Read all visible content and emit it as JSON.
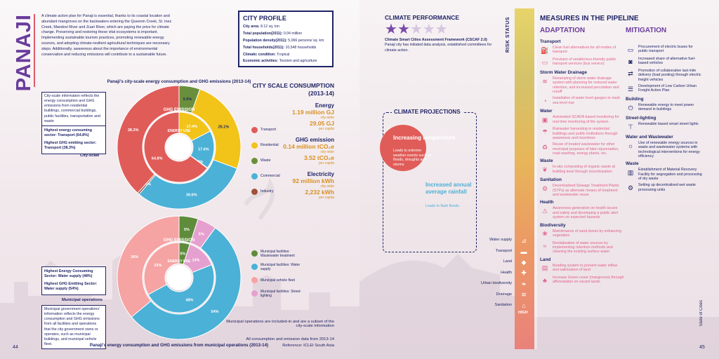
{
  "left": {
    "title": "PANAJI",
    "intro": "A climate action plan for Panaji is essential, thanks to its coastal location and abundant mangroves on the backwaters entering the Queenm Creek, St. Inez Creek, Mandovi River and Zuari River, which are paying the price for climate change. Preserving and restoring these vital ecosystems is important. Implementing sustainable tourism practices, promoting renewable energy sources, and adopting climate-resilient agricultural techniques are necessary steps. Additionally, awareness about the importance of environmental conservation and reducing emissions will contribute to a sustainable future.",
    "profile": {
      "title": "CITY PROFILE",
      "rows": [
        {
          "k": "City area:",
          "v": "8.12 sq. km"
        },
        {
          "k": "Total population(2011):",
          "v": "0.04 million"
        },
        {
          "k": "Population density(2011):",
          "v": "5,066 persons/ sq. km"
        },
        {
          "k": "Total households(2011):",
          "v": "10,548 households"
        },
        {
          "k": "Climatic condition:",
          "v": "Tropical"
        },
        {
          "k": "Economic activities:",
          "v": "Tourism and agriculture"
        }
      ]
    },
    "city_note": "City-scale information reflects the energy consumption and GHG emissions from residential buildings, commercial buildings, public facilities, transportation and waste",
    "city_highest_energy": "Highest energy consuming sector: Transport (64.8%)",
    "city_highest_ghg": "Highest GHG emitting sector: Transport (38.3%)",
    "city_scale_label": "City-scale",
    "city_chart_title": "Panaji's city-scale energy consumption and GHG emissions (2013-14)",
    "muni_note": "Municipal government operations' information reflects the energy consumption and GHG emissions from all facilities and operations that the city government owns or operates, such as municipal buildings, and municipal vehicle fleet.",
    "muni_highest_energy": "Highest Energy Consuming Sector: Water supply (48%)",
    "muni_highest_ghg": "Highest GHG Emitting Sector: Water supply (54%)",
    "muni_label": "Municipal operations",
    "muni_chart_title": "Panaji's energy consumption and GHG emissions from municipal operations (2013-14)",
    "ring_ghg": "GHG EMISSION",
    "ring_energy": "ENERGY USE",
    "csc": {
      "title": "CITY SCALE CONSUMPTION (2013-14)",
      "energy_label": "Energy",
      "energy_value": "1.19 million GJ",
      "energy_unit": "city-wide",
      "energy_pc_value": "29.05 GJ",
      "energy_pc_unit": "per capita",
      "ghg_label": "GHG emission",
      "ghg_value": "0.14 million tCO₂e",
      "ghg_unit": "city-wide",
      "ghg_pc_value": "3.52 tCO₂e",
      "ghg_pc_unit": "per capita",
      "elec_label": "Electricity",
      "elec_value": "92 million kWh",
      "elec_unit": "city-wide",
      "elec_pc_value": "2,232 kWh",
      "elec_pc_unit": "per capita"
    },
    "legend_city": [
      {
        "label": "Transport",
        "color": "#e05c58"
      },
      {
        "label": "Residential",
        "color": "#f2c318"
      },
      {
        "label": "Waste",
        "color": "#6a8f3c"
      },
      {
        "label": "Commercial",
        "color": "#4bb1d6"
      },
      {
        "label": "Industry",
        "color": "#a0513a"
      }
    ],
    "legend_muni": [
      {
        "label": "Municipal facilities: Wastewater treatment",
        "color": "#5e8c3a"
      },
      {
        "label": "Municipal facilities: Water supply",
        "color": "#4bb1d6"
      },
      {
        "label": "Municipal vehicle fleet",
        "color": "#f5a3a3"
      },
      {
        "label": "Municipal facilities: Street-lighting",
        "color": "#e6a0cf"
      }
    ],
    "footnote1": "Municipal operations are included-in and are a subset of the city-scale information",
    "footnote2": "All consumption and emission data from 2013-14",
    "footnote3": "Reference: ICLEI South Asia",
    "page_number": "44"
  },
  "chart_data": [
    {
      "type": "pie",
      "title": "Panaji's city-scale energy consumption and GHG emissions (2013-14)",
      "series": [
        {
          "name": "GHG EMISSION",
          "categories": [
            "Waste",
            "Residential",
            "Commercial",
            "Industry",
            "Transport"
          ],
          "values": [
            5.5,
            25.1,
            30.6,
            0.5,
            38.3
          ]
        },
        {
          "name": "ENERGY USE",
          "categories": [
            "Residential",
            "Commercial",
            "Industry",
            "Transport"
          ],
          "values": [
            17.4,
            17.6,
            0.2,
            64.8
          ]
        }
      ]
    },
    {
      "type": "pie",
      "title": "Panaji's energy consumption and GHG emissions from municipal operations (2013-14)",
      "series": [
        {
          "name": "GHG EMISSION",
          "categories": [
            "Wastewater treatment",
            "Street-lighting",
            "Water supply",
            "Vehicle fleet"
          ],
          "values": [
            5,
            5,
            54,
            36
          ]
        },
        {
          "name": "ENERGY USE",
          "categories": [
            "Wastewater treatment",
            "Street-lighting",
            "Water supply",
            "Vehicle fleet"
          ],
          "values": [
            5,
            14,
            48,
            33
          ]
        }
      ]
    }
  ],
  "right": {
    "perf_title": "CLIMATE PERFORMANCE",
    "stars_total": 5,
    "stars_filled": 2,
    "perf_framework": "Climate Smart Cities Assessment Framework (CSCAF 2.0)",
    "perf_desc": "Panaji city has initiated data analysis, established committees for climate action.",
    "proj_title": "CLIMATE PROJECTIONS",
    "proj1_title": "Increasing temperature",
    "proj1_desc": "Leads to extreme weather events such as floods, droughts and storms",
    "proj2_title": "Increased annual average rainfall",
    "proj2_desc": "Leads to flash floods.",
    "risk_label": "RISK STATUS",
    "high_label": "HIGH",
    "sectors": [
      "Water supply",
      "Transport",
      "Land",
      "Health",
      "Urban biodiversity",
      "Drainage",
      "Sanitation"
    ],
    "sector_icons": [
      "faucet-icon",
      "truck-icon",
      "land-icon",
      "health-icon",
      "leaf-icon",
      "drain-icon",
      "sanitation-icon"
    ],
    "measures_title": "MEASURES IN THE PIPELINE",
    "adaptation_title": "ADAPTATION",
    "mitigation_title": "MITIGATION",
    "adaptation": [
      {
        "cat": "Transport",
        "items": [
          {
            "t": "Clean fuel alternatives for all modes of transport",
            "i": "fuel-icon",
            "g": "⛽"
          },
          {
            "t": "Provision of smaller/eco-friendly public transport services (bus service)",
            "i": "bus-icon",
            "g": "▭"
          }
        ]
      },
      {
        "cat": "Storm Water Drainage",
        "items": [
          {
            "t": "Revamping of storm water drainage system with planning for reduced water retention, and increased percolation and runoff",
            "i": "drain-icon",
            "g": "≋"
          },
          {
            "t": "Installation of water level gauges to mark sea level rise",
            "i": "gauge-icon",
            "g": "◔"
          }
        ]
      },
      {
        "cat": "Water",
        "items": [
          {
            "t": "Automated SCADA based monitoring for real time monitoring of the system",
            "i": "monitor-icon",
            "g": "▣"
          },
          {
            "t": "Rainwater harvesting in residential buildings and public institutions through awareness and incentives",
            "i": "rain-icon",
            "g": "☂"
          },
          {
            "t": "Reuse of treated wastewater for other municipal purposes of lake rejuvenation, road washing, energy plants, etc.",
            "i": "recycle-icon",
            "g": "♻"
          }
        ]
      },
      {
        "cat": "Waste",
        "items": [
          {
            "t": "In-situ composting of organic waste at building level through incentivisation",
            "i": "compost-icon",
            "g": "❦"
          }
        ]
      },
      {
        "cat": "Sanitation",
        "items": [
          {
            "t": "Decentralised Sewage Treatment Plants (STPs) as alternate means of treatment and wastewater reuse",
            "i": "plant-icon",
            "g": "⚙"
          }
        ]
      },
      {
        "cat": "Health",
        "items": [
          {
            "t": "Awareness generation on health issues and safety and developing a public alert system on expected hazards",
            "i": "alert-icon",
            "g": "⚠"
          }
        ]
      },
      {
        "cat": "Biodiversity",
        "items": [
          {
            "t": "Maintenance of sand dunes by enhancing vegetation",
            "i": "sprout-icon",
            "g": "❀"
          },
          {
            "t": "Revitalisation of water sources by implementing retention methods and cleaning the existing surface water",
            "i": "water-icon",
            "g": "≈"
          }
        ]
      },
      {
        "cat": "Land",
        "items": [
          {
            "t": "Bunding system to prevent water inflow and salinisation of land",
            "i": "bund-icon",
            "g": "▤"
          },
          {
            "t": "Increase Green cover (mangroves) through afforestation on vacant lands",
            "i": "tree-icon",
            "g": "♣"
          }
        ]
      }
    ],
    "mitigation": [
      {
        "cat": "",
        "items": [
          {
            "t": "Procurement of electric buses for public transport",
            "i": "ebus-icon",
            "g": "▭"
          },
          {
            "t": "Increased share of alternative fuel-based vehicles",
            "i": "car-icon",
            "g": "◙"
          },
          {
            "t": "Promotion of collaborative last mile delivery (load pooling) through electric freight vehicles",
            "i": "freight-icon",
            "g": "⇄"
          },
          {
            "t": "Development of Low Carbon Urban Freight Action Plan",
            "i": "plan-icon",
            "g": "☰"
          }
        ]
      },
      {
        "cat": "Building",
        "items": [
          {
            "t": "Renewable energy to meet power demand in buildings",
            "i": "power-icon",
            "g": "⏻"
          }
        ]
      },
      {
        "cat": "Street-lighting",
        "items": [
          {
            "t": "Renewable based smart street lights",
            "i": "streetlight-icon",
            "g": "⊤"
          }
        ]
      },
      {
        "cat": "Water and Wastewater",
        "items": [
          {
            "t": "Use of renewable energy sources in waste and wastewater systems with technological interventions for energy efficiency",
            "i": "sun-icon",
            "g": "☼"
          }
        ]
      },
      {
        "cat": "Waste",
        "items": [
          {
            "t": "Establishment of Material Recovery Facility for segregation and processing of dry waste",
            "i": "bin-icon",
            "g": "▥"
          },
          {
            "t": "Setting up decentralised wet waste processing units",
            "i": "process-icon",
            "g": "⚙"
          }
        ]
      }
    ],
    "state_of_cities": "State of Cities",
    "page_number": "45"
  }
}
